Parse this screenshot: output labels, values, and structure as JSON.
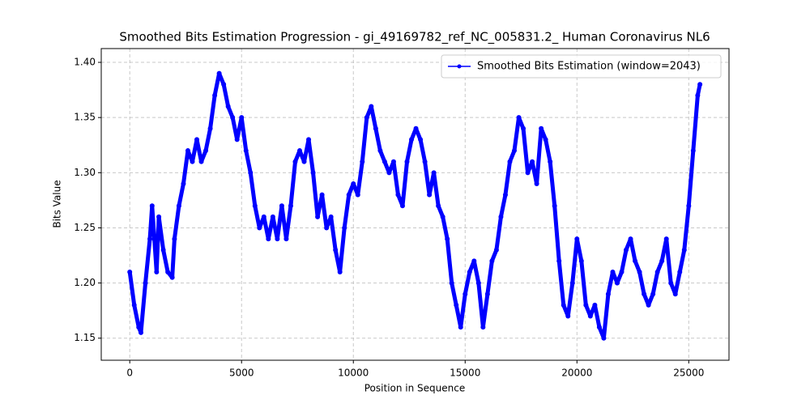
{
  "chart_data": {
    "type": "line",
    "title": "Smoothed Bits Estimation Progression - gi_49169782_ref_NC_005831.2_ Human Coronavirus NL6",
    "x_label": "Position in Sequence",
    "y_label": "Bits Value",
    "x": [
      0,
      200,
      400,
      500,
      700,
      900,
      1000,
      1100,
      1200,
      1300,
      1500,
      1700,
      1900,
      2000,
      2200,
      2400,
      2600,
      2800,
      3000,
      3200,
      3400,
      3600,
      3800,
      4000,
      4200,
      4400,
      4600,
      4800,
      5000,
      5200,
      5400,
      5600,
      5800,
      6000,
      6200,
      6400,
      6600,
      6800,
      7000,
      7200,
      7400,
      7600,
      7800,
      8000,
      8200,
      8400,
      8600,
      8800,
      9000,
      9200,
      9400,
      9600,
      9800,
      10000,
      10200,
      10400,
      10600,
      10800,
      11000,
      11200,
      11400,
      11600,
      11800,
      12000,
      12200,
      12400,
      12600,
      12800,
      13000,
      13200,
      13400,
      13600,
      13800,
      14000,
      14200,
      14400,
      14600,
      14800,
      15000,
      15200,
      15400,
      15600,
      15800,
      16000,
      16200,
      16400,
      16600,
      16800,
      17000,
      17200,
      17400,
      17600,
      17800,
      18000,
      18200,
      18400,
      18600,
      18800,
      19000,
      19200,
      19400,
      19600,
      19800,
      20000,
      20200,
      20400,
      20600,
      20800,
      21000,
      21200,
      21400,
      21600,
      21800,
      22000,
      22200,
      22400,
      22600,
      22800,
      23000,
      23200,
      23400,
      23600,
      23800,
      24000,
      24200,
      24400,
      24600,
      24800,
      25000,
      25200,
      25400,
      25500
    ],
    "series": [
      {
        "name": "Smoothed Bits Estimation (window=2043)",
        "color": "#0000ff",
        "values": [
          1.21,
          1.18,
          1.16,
          1.155,
          1.2,
          1.24,
          1.27,
          1.24,
          1.21,
          1.26,
          1.23,
          1.21,
          1.205,
          1.24,
          1.27,
          1.29,
          1.32,
          1.31,
          1.33,
          1.31,
          1.32,
          1.34,
          1.37,
          1.39,
          1.38,
          1.36,
          1.35,
          1.33,
          1.35,
          1.32,
          1.3,
          1.27,
          1.25,
          1.26,
          1.24,
          1.26,
          1.24,
          1.27,
          1.24,
          1.27,
          1.31,
          1.32,
          1.31,
          1.33,
          1.3,
          1.26,
          1.28,
          1.25,
          1.26,
          1.23,
          1.21,
          1.25,
          1.28,
          1.29,
          1.28,
          1.31,
          1.35,
          1.36,
          1.34,
          1.32,
          1.31,
          1.3,
          1.31,
          1.28,
          1.27,
          1.31,
          1.33,
          1.34,
          1.33,
          1.31,
          1.28,
          1.3,
          1.27,
          1.26,
          1.24,
          1.2,
          1.18,
          1.16,
          1.19,
          1.21,
          1.22,
          1.2,
          1.16,
          1.19,
          1.22,
          1.23,
          1.26,
          1.28,
          1.31,
          1.32,
          1.35,
          1.34,
          1.3,
          1.31,
          1.29,
          1.34,
          1.33,
          1.31,
          1.27,
          1.22,
          1.18,
          1.17,
          1.2,
          1.24,
          1.22,
          1.18,
          1.17,
          1.18,
          1.16,
          1.15,
          1.19,
          1.21,
          1.2,
          1.21,
          1.23,
          1.24,
          1.22,
          1.21,
          1.19,
          1.18,
          1.19,
          1.21,
          1.22,
          1.24,
          1.2,
          1.19,
          1.21,
          1.23,
          1.27,
          1.32,
          1.37,
          1.38
        ]
      }
    ],
    "xlim": [
      -1275,
      26800
    ],
    "ylim": [
      1.13,
      1.4125
    ],
    "xticks": [
      0,
      5000,
      10000,
      15000,
      20000,
      25000
    ],
    "yticks": [
      1.15,
      {
        "value": 1.2,
        "label": "1.20"
      },
      1.25,
      {
        "value": 1.3,
        "label": "1.30"
      },
      1.35,
      {
        "value": 1.4,
        "label": "1.40"
      }
    ],
    "grid": true,
    "legend": "upper right"
  }
}
